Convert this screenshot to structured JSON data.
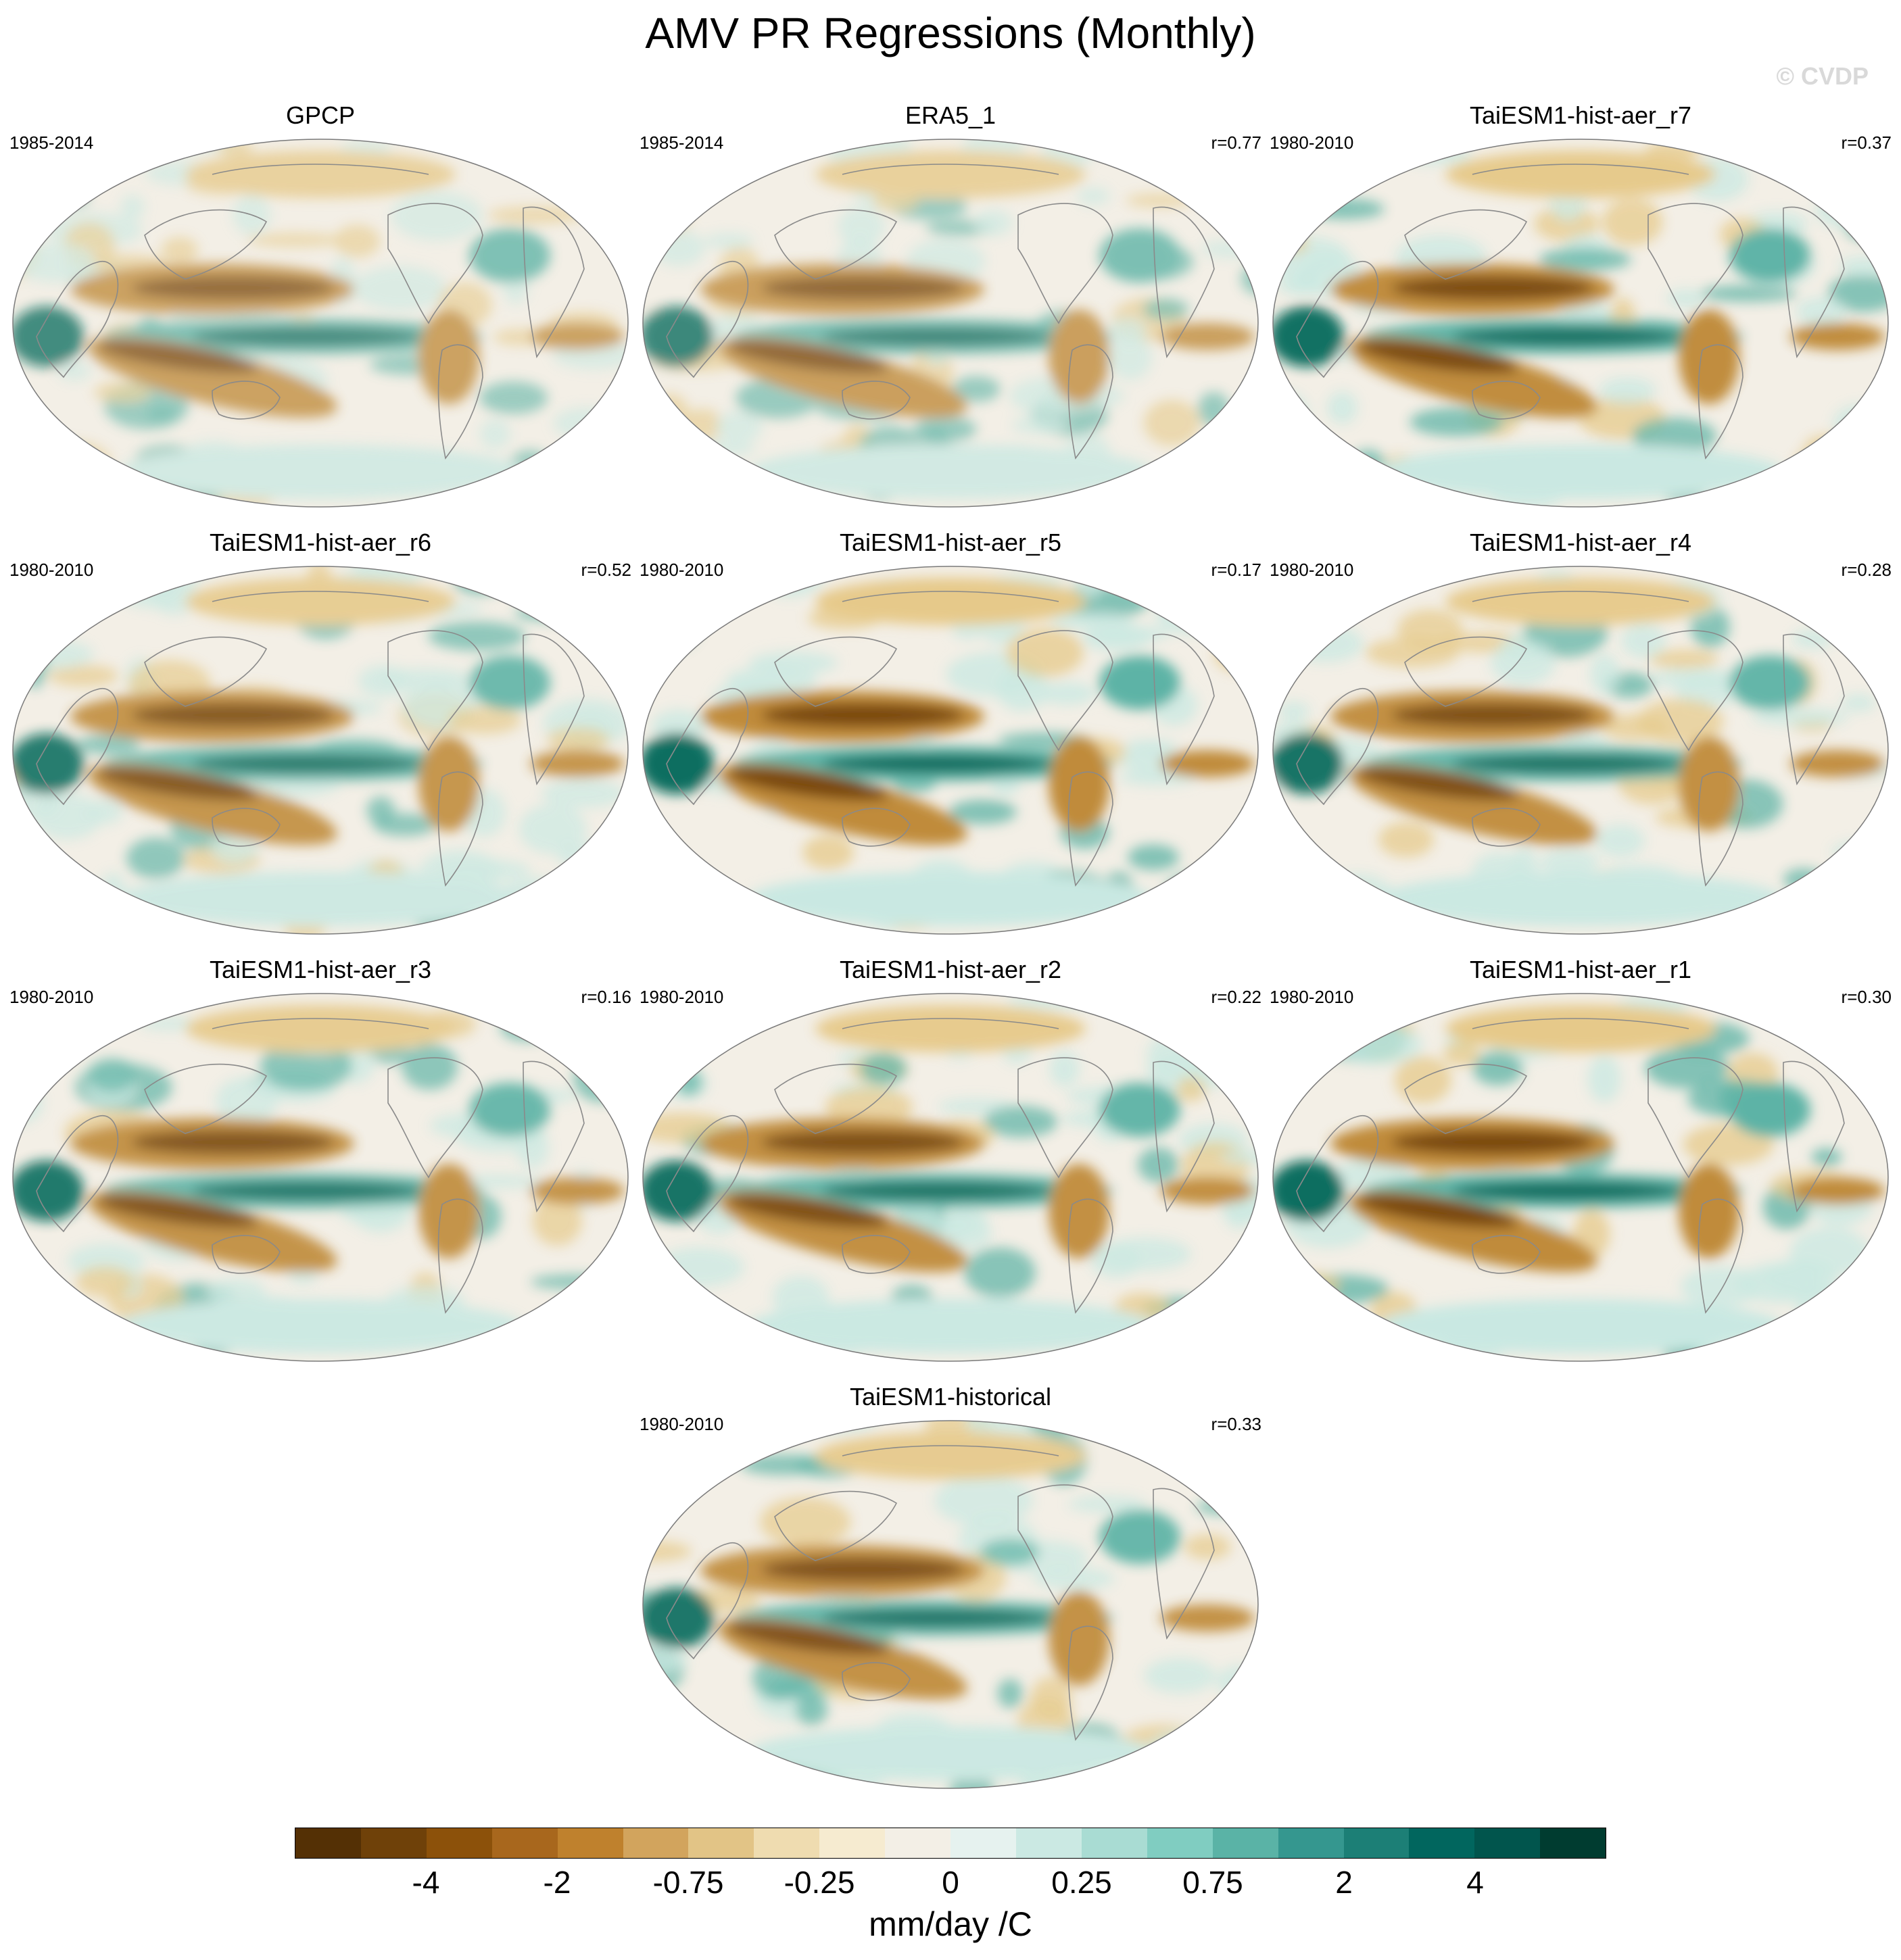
{
  "title": "AMV PR Regressions (Monthly)",
  "watermark": "© CVDP",
  "units": "mm/day /C",
  "colors": {
    "brown_strong": "#7a4a0f",
    "brown_mid": "#c08b3a",
    "brown_light": "#e6c98a",
    "neutral": "#f3efe6",
    "teal_light": "#c9e8e2",
    "teal_mid": "#5db3a6",
    "teal_strong": "#0f6e60",
    "coast": "#8a8a8a"
  },
  "panels": [
    {
      "title": "GPCP",
      "period": "1985-2014",
      "corr": "",
      "strength": 0.5
    },
    {
      "title": "ERA5_1",
      "period": "1985-2014",
      "corr": "r=0.77",
      "strength": 0.55
    },
    {
      "title": "TaiESM1-hist-aer_r7",
      "period": "1980-2010",
      "corr": "r=0.37",
      "strength": 0.95
    },
    {
      "title": "TaiESM1-hist-aer_r6",
      "period": "1980-2010",
      "corr": "r=0.52",
      "strength": 0.75
    },
    {
      "title": "TaiESM1-hist-aer_r5",
      "period": "1980-2010",
      "corr": "r=0.17",
      "strength": 1.0
    },
    {
      "title": "TaiESM1-hist-aer_r4",
      "period": "1980-2010",
      "corr": "r=0.28",
      "strength": 0.9
    },
    {
      "title": "TaiESM1-hist-aer_r3",
      "period": "1980-2010",
      "corr": "r=0.16",
      "strength": 0.8
    },
    {
      "title": "TaiESM1-hist-aer_r2",
      "period": "1980-2010",
      "corr": "r=0.22",
      "strength": 0.9
    },
    {
      "title": "TaiESM1-hist-aer_r1",
      "period": "1980-2010",
      "corr": "r=0.30",
      "strength": 1.0
    },
    {
      "title": "TaiESM1-historical",
      "period": "1980-2010",
      "corr": "r=0.33",
      "strength": 0.85
    }
  ],
  "colorbar": {
    "colors": [
      "#543005",
      "#6f4109",
      "#8c510a",
      "#a8671d",
      "#bf812d",
      "#d2a45d",
      "#e2c486",
      "#efdcb0",
      "#f6ebd0",
      "#f3efe6",
      "#e6f2ef",
      "#cbe9e3",
      "#a9dcd3",
      "#80cdc1",
      "#5ab3a6",
      "#35978f",
      "#1c7f76",
      "#01665e",
      "#01554d",
      "#003c30"
    ],
    "labels": [
      "-4",
      "-2",
      "-0.75",
      "-0.25",
      "0",
      "0.25",
      "0.75",
      "2",
      "4"
    ],
    "label_boundaries": [
      2,
      4,
      6,
      8,
      10,
      12,
      14,
      16,
      18
    ]
  }
}
